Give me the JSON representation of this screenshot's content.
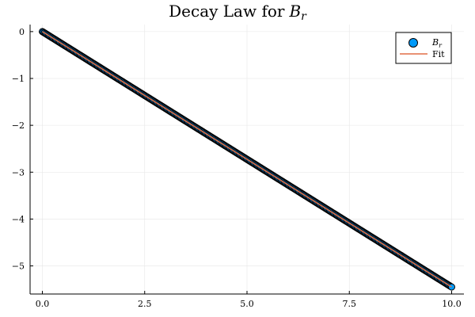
{
  "chart_data": {
    "type": "scatter",
    "title": "Decay Law for",
    "title_symbol": "B",
    "title_subscript": "r",
    "xlabel": "",
    "ylabel": "",
    "xlim": [
      -0.3,
      10.3
    ],
    "ylim": [
      -5.6,
      0.15
    ],
    "x_ticks": [
      0.0,
      2.5,
      5.0,
      7.5,
      10.0
    ],
    "x_tick_labels": [
      "0.0",
      "2.5",
      "5.0",
      "7.5",
      "10.0"
    ],
    "y_ticks": [
      0,
      -1,
      -2,
      -3,
      -4,
      -5
    ],
    "y_tick_labels": [
      "0",
      "−1",
      "−2",
      "−3",
      "−4",
      "−5"
    ],
    "grid": true,
    "legend_position": "top-right",
    "series": [
      {
        "name": "B_r",
        "legend_symbol": "B",
        "legend_subscript": "r",
        "kind": "scatter",
        "color": "#009af9",
        "marker_edge": "#000000",
        "x_start": 0.0,
        "x_end": 10.0,
        "n_points": 400,
        "slope": -0.545,
        "intercept": 0.0
      },
      {
        "name": "Fit",
        "kind": "line",
        "color": "#e26f46",
        "x": [
          0.0,
          10.0
        ],
        "y": [
          0.0,
          -5.45
        ]
      }
    ]
  }
}
